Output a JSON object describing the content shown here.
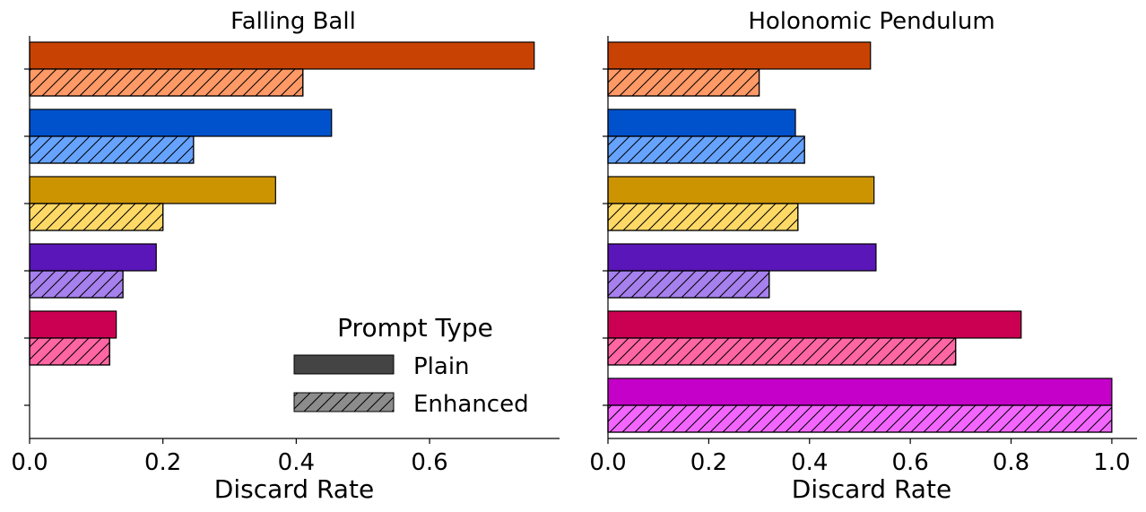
{
  "chart_data": [
    {
      "type": "bar",
      "orientation": "horizontal",
      "title": "Falling Ball",
      "xlabel": "Discard Rate",
      "ylabel": "",
      "xlim": [
        0,
        0.795
      ],
      "xticks": [
        "0.0",
        "0.2",
        "0.4",
        "0.6"
      ],
      "categories": [
        "",
        "",
        "",
        "",
        "",
        ""
      ],
      "series": [
        {
          "name": "Plain",
          "values": [
            0.757,
            0.453,
            0.369,
            0.19,
            0.13,
            null
          ],
          "colors": [
            "#c84303",
            "#0052cc",
            "#cc9400",
            "#5a16b8",
            "#cc0052",
            "#c400c9"
          ]
        },
        {
          "name": "Enhanced",
          "values": [
            0.41,
            0.246,
            0.2,
            0.14,
            0.12,
            null
          ],
          "colors": [
            "#ff9966",
            "#66a3ff",
            "#ffd966",
            "#a680ed",
            "#ff66a3",
            "#f266ff"
          ]
        }
      ],
      "grid": false,
      "legend": {
        "title": "Prompt Type",
        "entries": [
          "Plain",
          "Enhanced"
        ],
        "placement": "lower-right"
      }
    },
    {
      "type": "bar",
      "orientation": "horizontal",
      "title": "Holonomic Pendulum",
      "xlabel": "Discard Rate",
      "ylabel": "",
      "xlim": [
        0,
        1.05
      ],
      "xticks": [
        "0.0",
        "0.2",
        "0.4",
        "0.6",
        "0.8",
        "1.0"
      ],
      "categories": [
        "",
        "",
        "",
        "",
        "",
        ""
      ],
      "series": [
        {
          "name": "Plain",
          "values": [
            0.521,
            0.372,
            0.528,
            0.532,
            0.82,
            1.0
          ],
          "colors": [
            "#c84303",
            "#0052cc",
            "#cc9400",
            "#5a16b8",
            "#cc0052",
            "#c400c9"
          ]
        },
        {
          "name": "Enhanced",
          "values": [
            0.3,
            0.39,
            0.377,
            0.32,
            0.69,
            1.0
          ],
          "colors": [
            "#ff9966",
            "#66a3ff",
            "#ffd966",
            "#a680ed",
            "#ff66a3",
            "#f266ff"
          ]
        }
      ],
      "grid": false
    }
  ],
  "legend_colors": {
    "plain": "#444444",
    "enhanced": "#8c8c8c"
  }
}
